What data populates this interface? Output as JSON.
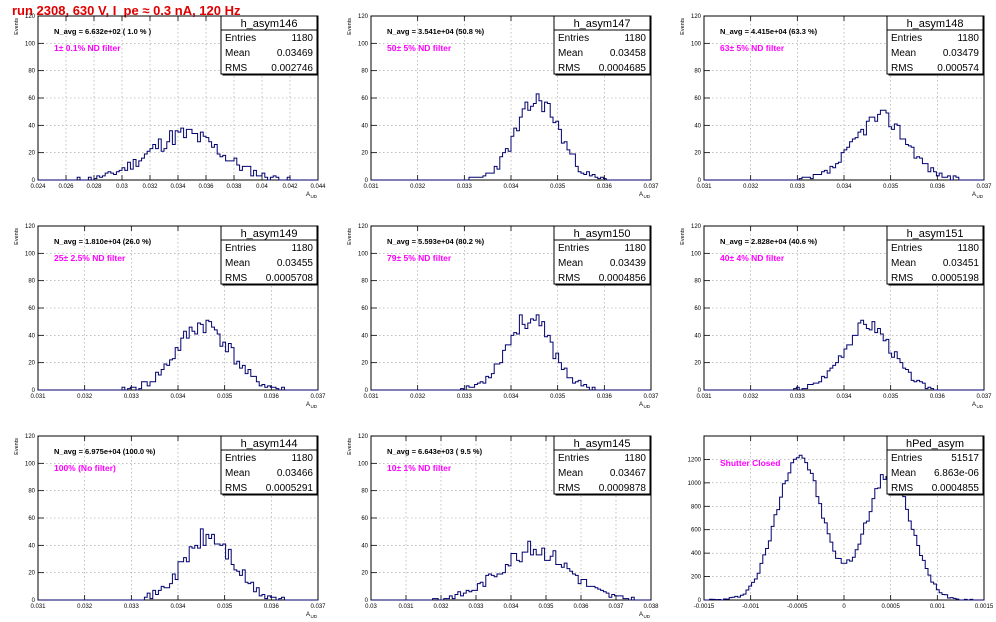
{
  "page_title": "run 2308,   630 V, I_pe ≈ 0.3 nA, 120 Hz",
  "stat_labels": {
    "entries": "Entries",
    "mean": "Mean",
    "rms": "RMS"
  },
  "chart_data": [
    {
      "type": "histogram",
      "name": "h_asym146",
      "navg": "N_avg = 6.632e+02 ( 1.0 % )",
      "filter": "1± 0.1% ND filter",
      "entries": "1180",
      "mean": "0.03469",
      "rms": "0.002746",
      "ylabel": "Events",
      "xlabel": "A_UD",
      "xlim": [
        0.024,
        0.044
      ],
      "ylim": [
        0,
        120
      ],
      "xticks": [
        0.024,
        0.026,
        0.028,
        0.03,
        0.032,
        0.034,
        0.036,
        0.038,
        0.04,
        0.042,
        0.044
      ],
      "xtick_labels": [
        "0.024",
        "0.026",
        "0.028",
        "0.03",
        "0.032",
        "0.034",
        "0.036",
        "0.038",
        "0.04",
        "0.042",
        "0.044"
      ],
      "yticks": [
        0,
        20,
        40,
        60,
        80,
        100,
        120
      ],
      "peaks": [
        {
          "mu": 0.0345,
          "sigma": 0.0026,
          "amp": 33
        }
      ],
      "noise": 7,
      "seed": 11
    },
    {
      "type": "histogram",
      "name": "h_asym147",
      "navg": "N_avg = 3.541e+04 (50.8 %)",
      "filter": "50± 5% ND filter",
      "entries": "1180",
      "mean": "0.03458",
      "rms": "0.0004685",
      "ylabel": "Events",
      "xlabel": "A_UD",
      "xlim": [
        0.031,
        0.037
      ],
      "ylim": [
        0,
        120
      ],
      "xticks": [
        0.031,
        0.032,
        0.033,
        0.034,
        0.035,
        0.036,
        0.037
      ],
      "xtick_labels": [
        "0.031",
        "0.032",
        "0.033",
        "0.034",
        "0.035",
        "0.036",
        "0.037"
      ],
      "yticks": [
        0,
        20,
        40,
        60,
        80,
        100,
        120
      ],
      "peaks": [
        {
          "mu": 0.03458,
          "sigma": 0.00047,
          "amp": 58
        }
      ],
      "noise": 7,
      "seed": 23
    },
    {
      "type": "histogram",
      "name": "h_asym148",
      "navg": "N_avg = 4.415e+04 (63.3 %)",
      "filter": "63± 5% ND filter",
      "entries": "1180",
      "mean": "0.03479",
      "rms": "0.000574",
      "ylabel": "Events",
      "xlabel": "A_UD",
      "xlim": [
        0.031,
        0.037
      ],
      "ylim": [
        0,
        120
      ],
      "xticks": [
        0.031,
        0.032,
        0.033,
        0.034,
        0.035,
        0.036,
        0.037
      ],
      "xtick_labels": [
        "0.031",
        "0.032",
        "0.033",
        "0.034",
        "0.035",
        "0.036",
        "0.037"
      ],
      "yticks": [
        0,
        20,
        40,
        60,
        80,
        100,
        120
      ],
      "peaks": [
        {
          "mu": 0.03479,
          "sigma": 0.00057,
          "amp": 46
        }
      ],
      "noise": 6,
      "seed": 37
    },
    {
      "type": "histogram",
      "name": "h_asym149",
      "navg": "N_avg = 1.810e+04 (26.0 %)",
      "filter": "25± 2.5% ND filter",
      "entries": "1180",
      "mean": "0.03455",
      "rms": "0.0005708",
      "ylabel": "Events",
      "xlabel": "A_UD",
      "xlim": [
        0.031,
        0.037
      ],
      "ylim": [
        0,
        120
      ],
      "xticks": [
        0.031,
        0.032,
        0.033,
        0.034,
        0.035,
        0.036,
        0.037
      ],
      "xtick_labels": [
        "0.031",
        "0.032",
        "0.033",
        "0.034",
        "0.035",
        "0.036",
        "0.037"
      ],
      "yticks": [
        0,
        20,
        40,
        60,
        80,
        100,
        120
      ],
      "peaks": [
        {
          "mu": 0.03455,
          "sigma": 0.00057,
          "amp": 48
        }
      ],
      "noise": 7,
      "seed": 41
    },
    {
      "type": "histogram",
      "name": "h_asym150",
      "navg": "N_avg = 5.593e+04 (80.2 %)",
      "filter": "79± 5% ND filter",
      "entries": "1180",
      "mean": "0.03439",
      "rms": "0.0004856",
      "ylabel": "Events",
      "xlabel": "A_UD",
      "xlim": [
        0.031,
        0.037
      ],
      "ylim": [
        0,
        120
      ],
      "xticks": [
        0.031,
        0.032,
        0.033,
        0.034,
        0.035,
        0.036,
        0.037
      ],
      "xtick_labels": [
        "0.031",
        "0.032",
        "0.033",
        "0.034",
        "0.035",
        "0.036",
        "0.037"
      ],
      "yticks": [
        0,
        20,
        40,
        60,
        80,
        100,
        120
      ],
      "peaks": [
        {
          "mu": 0.03439,
          "sigma": 0.00049,
          "amp": 52
        }
      ],
      "noise": 7,
      "seed": 53
    },
    {
      "type": "histogram",
      "name": "h_asym151",
      "navg": "N_avg = 2.828e+04 (40.6 %)",
      "filter": "40± 4% ND filter",
      "entries": "1180",
      "mean": "0.03451",
      "rms": "0.0005198",
      "ylabel": "Events",
      "xlabel": "A_UD",
      "xlim": [
        0.031,
        0.037
      ],
      "ylim": [
        0,
        120
      ],
      "xticks": [
        0.031,
        0.032,
        0.033,
        0.034,
        0.035,
        0.036,
        0.037
      ],
      "xtick_labels": [
        "0.031",
        "0.032",
        "0.033",
        "0.034",
        "0.035",
        "0.036",
        "0.037"
      ],
      "yticks": [
        0,
        20,
        40,
        60,
        80,
        100,
        120
      ],
      "peaks": [
        {
          "mu": 0.03451,
          "sigma": 0.00052,
          "amp": 48
        }
      ],
      "noise": 5,
      "seed": 67
    },
    {
      "type": "histogram",
      "name": "h_asym144",
      "navg": "N_avg = 6.975e+04 (100.0 %)",
      "filter": "100% (No filter)",
      "entries": "1180",
      "mean": "0.03466",
      "rms": "0.0005291",
      "ylabel": "Events",
      "xlabel": "A_UD",
      "xlim": [
        0.031,
        0.037
      ],
      "ylim": [
        0,
        120
      ],
      "xticks": [
        0.031,
        0.032,
        0.033,
        0.034,
        0.035,
        0.036,
        0.037
      ],
      "xtick_labels": [
        "0.031",
        "0.032",
        "0.033",
        "0.034",
        "0.035",
        "0.036",
        "0.037"
      ],
      "yticks": [
        0,
        20,
        40,
        60,
        80,
        100,
        120
      ],
      "peaks": [
        {
          "mu": 0.03466,
          "sigma": 0.00053,
          "amp": 46
        }
      ],
      "noise": 8,
      "seed": 71
    },
    {
      "type": "histogram",
      "name": "h_asym145",
      "navg": "N_avg = 6.643e+03 ( 9.5 %)",
      "filter": "10± 1% ND filter",
      "entries": "1180",
      "mean": "0.03467",
      "rms": "0.0009878",
      "ylabel": "Events",
      "xlabel": "A_UD",
      "xlim": [
        0.03,
        0.038
      ],
      "ylim": [
        0,
        120
      ],
      "xticks": [
        0.03,
        0.031,
        0.032,
        0.033,
        0.034,
        0.035,
        0.036,
        0.037,
        0.038
      ],
      "xtick_labels": [
        "0.03",
        "0.031",
        "0.032",
        "0.033",
        "0.034",
        "0.035",
        "0.036",
        "0.037",
        "0.038"
      ],
      "yticks": [
        0,
        20,
        40,
        60,
        80,
        100,
        120
      ],
      "peaks": [
        {
          "mu": 0.03467,
          "sigma": 0.00099,
          "amp": 37
        }
      ],
      "noise": 6,
      "seed": 83
    },
    {
      "type": "histogram",
      "name": "hPed_asym",
      "navg": "",
      "filter": "Shutter Closed",
      "entries": "51517",
      "mean": "6.863e-06",
      "rms": "0.0004855",
      "ylabel": "",
      "xlabel": "",
      "xlim": [
        -0.0015,
        0.0015
      ],
      "ylim": [
        0,
        1400
      ],
      "xticks": [
        -0.0015,
        -0.001,
        -0.0005,
        0,
        0.0005,
        0.001,
        0.0015
      ],
      "xtick_labels": [
        "-0.0015",
        "-0.001",
        "-0.0005",
        "0",
        "0.0005",
        "0.001",
        "0.0015"
      ],
      "yticks": [
        0,
        200,
        400,
        600,
        800,
        1000,
        1200
      ],
      "peaks": [
        {
          "mu": -0.00048,
          "sigma": 0.00024,
          "amp": 1240
        },
        {
          "mu": 0.00048,
          "sigma": 0.00024,
          "amp": 1080
        }
      ],
      "noise": 45,
      "seed": 97
    }
  ]
}
